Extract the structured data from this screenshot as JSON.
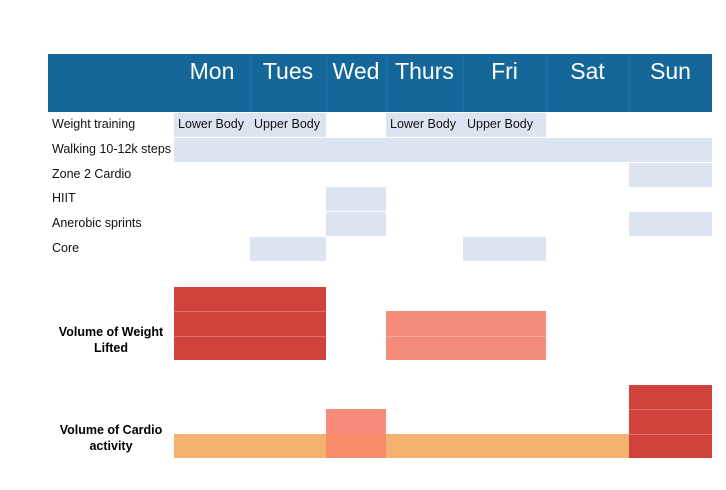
{
  "days": [
    "Mon",
    "Tues",
    "Wed",
    "Thurs",
    "Fri",
    "Sat",
    "Sun"
  ],
  "activities": [
    "Weight training",
    "Walking 10-12k steps",
    "Zone 2 Cardio",
    "HIIT",
    "Anerobic sprints",
    "Core"
  ],
  "schedule": [
    {
      "activity": "Weight training",
      "Mon": "Lower Body",
      "Tues": "Upper Body",
      "Wed": "",
      "Thurs": "Lower Body",
      "Fri": "Upper Body",
      "Sat": "",
      "Sun": ""
    },
    {
      "activity": "Walking 10-12k steps",
      "Mon": "yes",
      "Tues": "yes",
      "Wed": "yes",
      "Thurs": "yes",
      "Fri": "yes",
      "Sat": "yes",
      "Sun": "yes"
    },
    {
      "activity": "Zone 2 Cardio",
      "Mon": "",
      "Tues": "",
      "Wed": "",
      "Thurs": "",
      "Fri": "",
      "Sat": "",
      "Sun": "yes"
    },
    {
      "activity": "HIIT",
      "Mon": "",
      "Tues": "",
      "Wed": "yes",
      "Thurs": "",
      "Fri": "",
      "Sat": "",
      "Sun": ""
    },
    {
      "activity": "Anerobic sprints",
      "Mon": "",
      "Tues": "",
      "Wed": "yes",
      "Thurs": "",
      "Fri": "",
      "Sat": "",
      "Sun": "yes"
    },
    {
      "activity": "Core",
      "Mon": "",
      "Tues": "yes",
      "Wed": "",
      "Thurs": "",
      "Fri": "yes",
      "Sat": "",
      "Sun": ""
    }
  ],
  "volume_weight": {
    "label": "Volume of  Weight Lifted",
    "levels": {
      "Mon": 3,
      "Tues": 3,
      "Wed": 0,
      "Thurs": 2,
      "Fri": 2,
      "Sat": 0,
      "Sun": 0
    },
    "colors": {
      "Mon": "#d0423a",
      "Tues": "#d0423a",
      "Thurs": "#f48c7c",
      "Fri": "#f48c7c"
    }
  },
  "volume_cardio": {
    "label": "Volume of Cardio activity",
    "levels": {
      "Mon": 1,
      "Tues": 1,
      "Wed": 2,
      "Thurs": 1,
      "Fri": 1,
      "Sat": 1,
      "Sun": 3
    },
    "colors": {
      "Mon": "#f5b16e",
      "Tues": "#f5b16e",
      "Wed": "#f58b78",
      "Thurs": "#f5b16e",
      "Fri": "#f5b16e",
      "Sat": "#f5b16e",
      "Sun": "#d0423a"
    },
    "wed_base_color": "#f98a6a"
  },
  "colors": {
    "header_bg": "#15679a",
    "schedule_cell": "#dce4f1"
  }
}
